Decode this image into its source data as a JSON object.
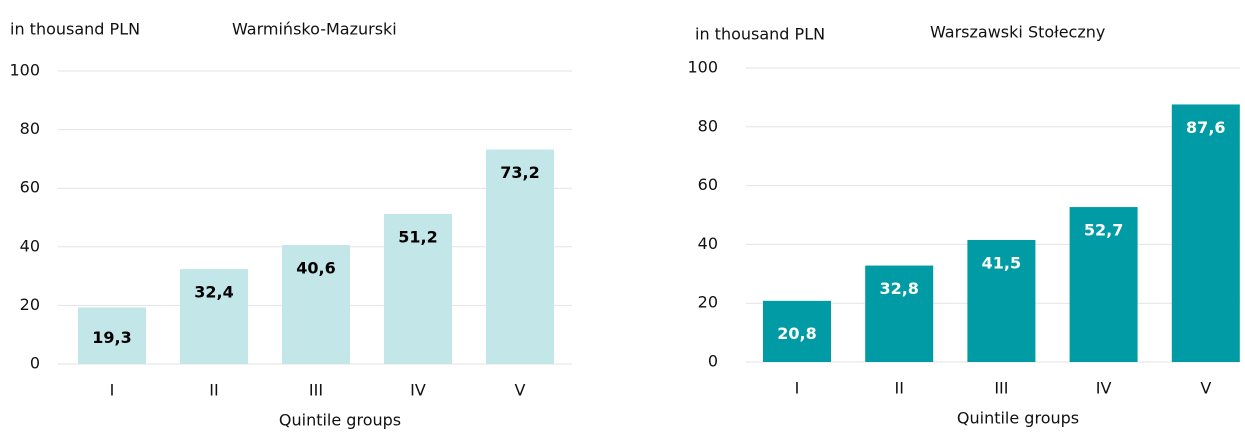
{
  "chart_data": [
    {
      "type": "bar",
      "title": "Warmińsko-Mazurski",
      "y_label": "in thousand PLN",
      "x_label": "Quintile groups",
      "categories": [
        "I",
        "II",
        "III",
        "IV",
        "V"
      ],
      "values": [
        19.3,
        32.4,
        40.6,
        51.2,
        73.2
      ],
      "value_labels": [
        "19,3",
        "32,4",
        "40,6",
        "51,2",
        "73,2"
      ],
      "color": "#c3e6e9",
      "label_color": "#000000",
      "ylim": [
        0,
        100
      ],
      "yticks": [
        0,
        20,
        40,
        60,
        80,
        100
      ],
      "grid": true
    },
    {
      "type": "bar",
      "title": "Warszawski Stołeczny",
      "y_label": "in thousand PLN",
      "x_label": "Quintile groups",
      "categories": [
        "I",
        "II",
        "III",
        "IV",
        "V"
      ],
      "values": [
        20.8,
        32.8,
        41.5,
        52.7,
        87.6
      ],
      "value_labels": [
        "20,8",
        "32,8",
        "41,5",
        "52,7",
        "87,6"
      ],
      "color": "#009ba4",
      "label_color": "#ffffff",
      "ylim": [
        0,
        100
      ],
      "yticks": [
        0,
        20,
        40,
        60,
        80,
        100
      ],
      "grid": true
    }
  ]
}
